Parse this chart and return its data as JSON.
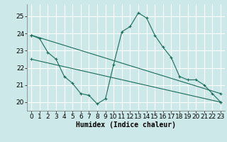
{
  "xlabel": "Humidex (Indice chaleur)",
  "bg_color": "#cce8e8",
  "grid_color": "#ffffff",
  "line_color": "#1a6b5a",
  "xlim": [
    -0.5,
    23.5
  ],
  "ylim": [
    19.5,
    25.7
  ],
  "xticks": [
    0,
    1,
    2,
    3,
    4,
    5,
    6,
    7,
    8,
    9,
    10,
    11,
    12,
    13,
    14,
    15,
    16,
    17,
    18,
    19,
    20,
    21,
    22,
    23
  ],
  "yticks": [
    20,
    21,
    22,
    23,
    24,
    25
  ],
  "series1_x": [
    0,
    1,
    2,
    3,
    4,
    5,
    6,
    7,
    8,
    9,
    10,
    11,
    12,
    13,
    14,
    15,
    16,
    17,
    18,
    19,
    20,
    21,
    22,
    23
  ],
  "series1_y": [
    23.9,
    23.7,
    22.9,
    22.5,
    21.5,
    21.1,
    20.5,
    20.4,
    19.9,
    20.2,
    22.2,
    24.1,
    24.4,
    25.2,
    24.9,
    23.9,
    23.2,
    22.6,
    21.5,
    21.3,
    21.3,
    21.0,
    20.5,
    20.0
  ],
  "series2_x": [
    0,
    23
  ],
  "series2_y": [
    23.9,
    20.5
  ],
  "series3_x": [
    0,
    23
  ],
  "series3_y": [
    22.5,
    20.0
  ],
  "xlabel_fontsize": 7,
  "tick_fontsize": 6.5
}
